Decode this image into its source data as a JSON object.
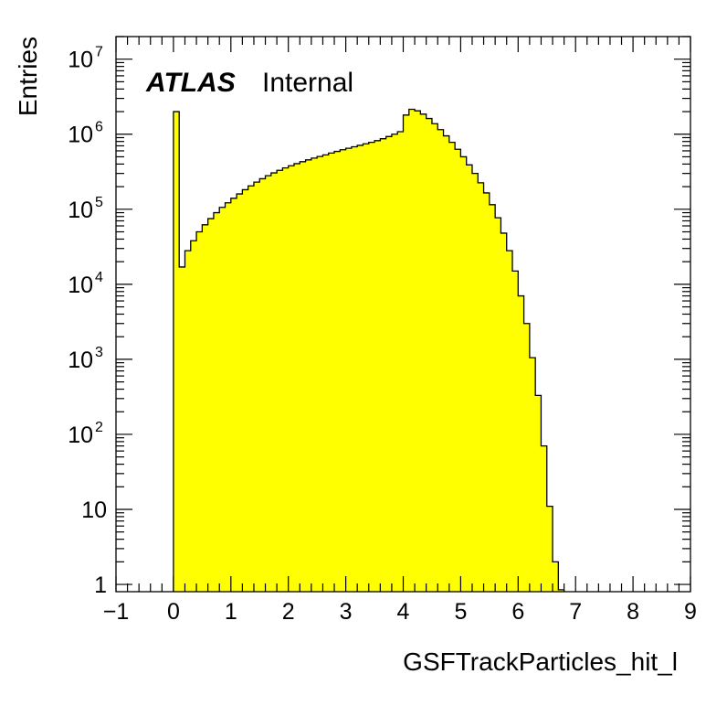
{
  "chart_data": {
    "type": "bar",
    "xlabel": "GSFTrackParticles_hit_l",
    "ylabel": "Entries",
    "annotation": {
      "bold": "ATLAS",
      "normal": "Internal"
    },
    "xlim": [
      -1,
      9
    ],
    "ylim": [
      0.8,
      20000000
    ],
    "log_y": true,
    "x_ticks": [
      "−1",
      "0",
      "1",
      "2",
      "3",
      "4",
      "5",
      "6",
      "7",
      "8",
      "9"
    ],
    "y_ticks": [
      "1",
      "10",
      "10",
      "10",
      "10",
      "10",
      "10",
      "10"
    ],
    "y_tick_exponents": [
      "",
      "",
      "2",
      "3",
      "4",
      "5",
      "6",
      "7"
    ],
    "colors": {
      "fill": "#ffff00",
      "line": "#000000"
    },
    "bin_width": 0.1,
    "bins_start": 0,
    "values": [
      2000000,
      17000,
      28000,
      38000,
      50000,
      62000,
      75000,
      90000,
      106000,
      122000,
      140000,
      160000,
      182000,
      205000,
      230000,
      255000,
      280000,
      305000,
      330000,
      355000,
      380000,
      405000,
      430000,
      455000,
      480000,
      505000,
      530000,
      560000,
      590000,
      620000,
      650000,
      680000,
      710000,
      745000,
      780000,
      820000,
      870000,
      930000,
      1000000,
      1080000,
      1800000,
      2150000,
      2050000,
      1850000,
      1620000,
      1380000,
      1150000,
      950000,
      780000,
      630000,
      500000,
      390000,
      300000,
      225000,
      165000,
      115000,
      77000,
      48000,
      28000,
      15000,
      7000,
      3000,
      1050,
      330,
      70,
      11,
      2,
      0.85
    ]
  }
}
